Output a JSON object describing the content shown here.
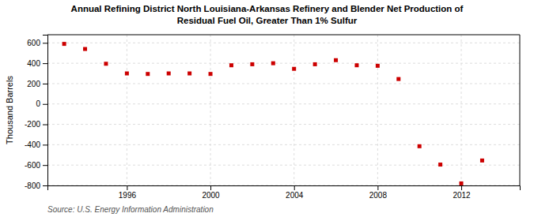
{
  "chart_data": {
    "type": "scatter",
    "title": "Annual Refining District North Louisiana-Arkansas Refinery and Blender Net Production of",
    "subtitle": "Residual Fuel Oil, Greater Than 1% Sulfur",
    "y_label": "Thousand Barrels",
    "source": "Source: U.S. Energy Information Administration",
    "x": [
      1993,
      1994,
      1995,
      1996,
      1997,
      1998,
      1999,
      2000,
      2001,
      2002,
      2003,
      2004,
      2005,
      2006,
      2007,
      2008,
      2009,
      2010,
      2011,
      2012,
      2013
    ],
    "values": [
      590,
      540,
      395,
      300,
      295,
      300,
      300,
      295,
      380,
      390,
      400,
      345,
      390,
      430,
      380,
      375,
      245,
      -415,
      -595,
      -780,
      -555
    ],
    "color": "#cc0000",
    "marker": "square",
    "xlim": [
      1992.2,
      2014.8
    ],
    "xticks": [
      1996,
      2000,
      2004,
      2008,
      2012
    ],
    "ylim": [
      -800,
      680
    ],
    "yticks": [
      -800,
      -600,
      -400,
      -200,
      0,
      200,
      400,
      600
    ],
    "grid": true
  }
}
